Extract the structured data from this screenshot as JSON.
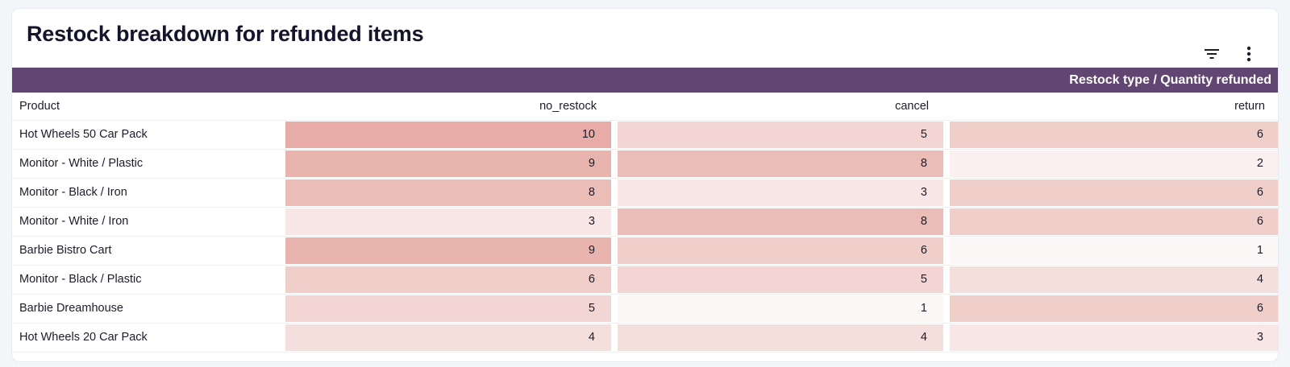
{
  "title": "Restock breakdown for refunded items",
  "toolbar": {
    "filter_icon": "filter-icon",
    "more_icon": "more-vert-icon"
  },
  "colors": {
    "header_band": "#614671",
    "heat_max": "#e6aca5",
    "heat_min": "#fdf8f8"
  },
  "chart_data": {
    "type": "table",
    "title": "Restock breakdown for refunded items",
    "group_header": "Restock type / Quantity refunded",
    "row_header": "Product",
    "columns": [
      "no_restock",
      "cancel",
      "return"
    ],
    "rows": [
      {
        "product": "Hot Wheels 50 Car Pack",
        "values": [
          10,
          5,
          6
        ]
      },
      {
        "product": "Monitor - White / Plastic",
        "values": [
          9,
          8,
          2
        ]
      },
      {
        "product": "Monitor - Black / Iron",
        "values": [
          8,
          3,
          6
        ]
      },
      {
        "product": "Monitor - White / Iron",
        "values": [
          3,
          8,
          6
        ]
      },
      {
        "product": "Barbie Bistro Cart",
        "values": [
          9,
          6,
          1
        ]
      },
      {
        "product": "Monitor - Black / Plastic",
        "values": [
          6,
          5,
          4
        ]
      },
      {
        "product": "Barbie Dreamhouse",
        "values": [
          5,
          1,
          6
        ]
      },
      {
        "product": "Hot Wheels 20 Car Pack",
        "values": [
          4,
          4,
          3
        ]
      }
    ],
    "heatmap": {
      "min": 1,
      "max": 10
    }
  }
}
